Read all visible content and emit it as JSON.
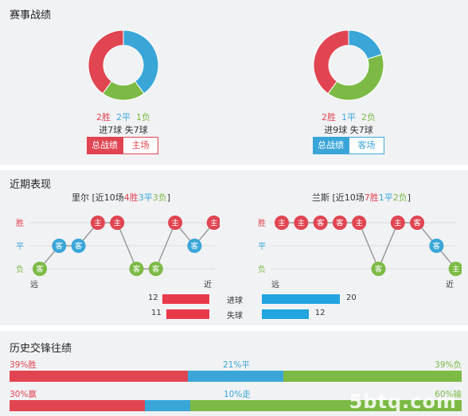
{
  "colors": {
    "win": "#e04551",
    "draw": "#3aa6d8",
    "loss": "#7cba45",
    "panel": "#f1f2f4"
  },
  "section1": {
    "title": "赛事战绩",
    "left": {
      "wins": "2胜",
      "draws": "2平",
      "losses": "1负",
      "goals": "进7球  失7球",
      "donut": {
        "win": 2,
        "draw": 2,
        "loss": 1
      },
      "tab_active": "总战绩",
      "tab_other": "主场"
    },
    "right": {
      "wins": "2胜",
      "draws": "1平",
      "losses": "2负",
      "goals": "进9球  失7球",
      "donut": {
        "win": 2,
        "draw": 1,
        "loss": 2
      },
      "tab_active": "总战绩",
      "tab_other": "客场"
    }
  },
  "section2": {
    "title": "近期表现",
    "y_labels": {
      "win": "胜",
      "draw": "平",
      "loss": "负"
    },
    "far_label": "远",
    "near_label": "近",
    "home": {
      "prefix": "里尔 [近10场",
      "wins": "4胜",
      "draws": "3平",
      "losses": "3负",
      "suffix": "]",
      "results": [
        "L",
        "D",
        "D",
        "W",
        "W",
        "L",
        "L",
        "W",
        "D",
        "W"
      ],
      "venues": [
        "客",
        "客",
        "客",
        "主",
        "主",
        "客",
        "客",
        "主",
        "客",
        "主"
      ]
    },
    "away": {
      "prefix": "兰斯 [近10场",
      "wins": "7胜",
      "draws": "1平",
      "losses": "2负",
      "suffix": "]",
      "results": [
        "W",
        "W",
        "W",
        "W",
        "W",
        "L",
        "W",
        "W",
        "D",
        "L"
      ],
      "venues": [
        "主",
        "主",
        "客",
        "客",
        "主",
        "客",
        "主",
        "客",
        "客",
        "主"
      ]
    },
    "goals_label": "进球",
    "goals_home": "12",
    "goals_away": "20",
    "conceded_label": "失球",
    "conceded_home": "11",
    "conceded_away": "12",
    "goals_values": {
      "goals_home": 12,
      "goals_away": 20,
      "conceded_home": 11,
      "conceded_away": 12,
      "max": 20
    }
  },
  "section3": {
    "title": "历史交锋往绩",
    "row1": {
      "win_label": "39%胜",
      "draw_label": "21%平",
      "loss_label": "39%负",
      "win": 39,
      "draw": 21,
      "loss": 39
    },
    "row2": {
      "win_label": "30%赢",
      "draw_label": "10%走",
      "loss_label": "60%输",
      "win": 30,
      "draw": 10,
      "loss": 60
    }
  },
  "watermark": "5btq.com"
}
